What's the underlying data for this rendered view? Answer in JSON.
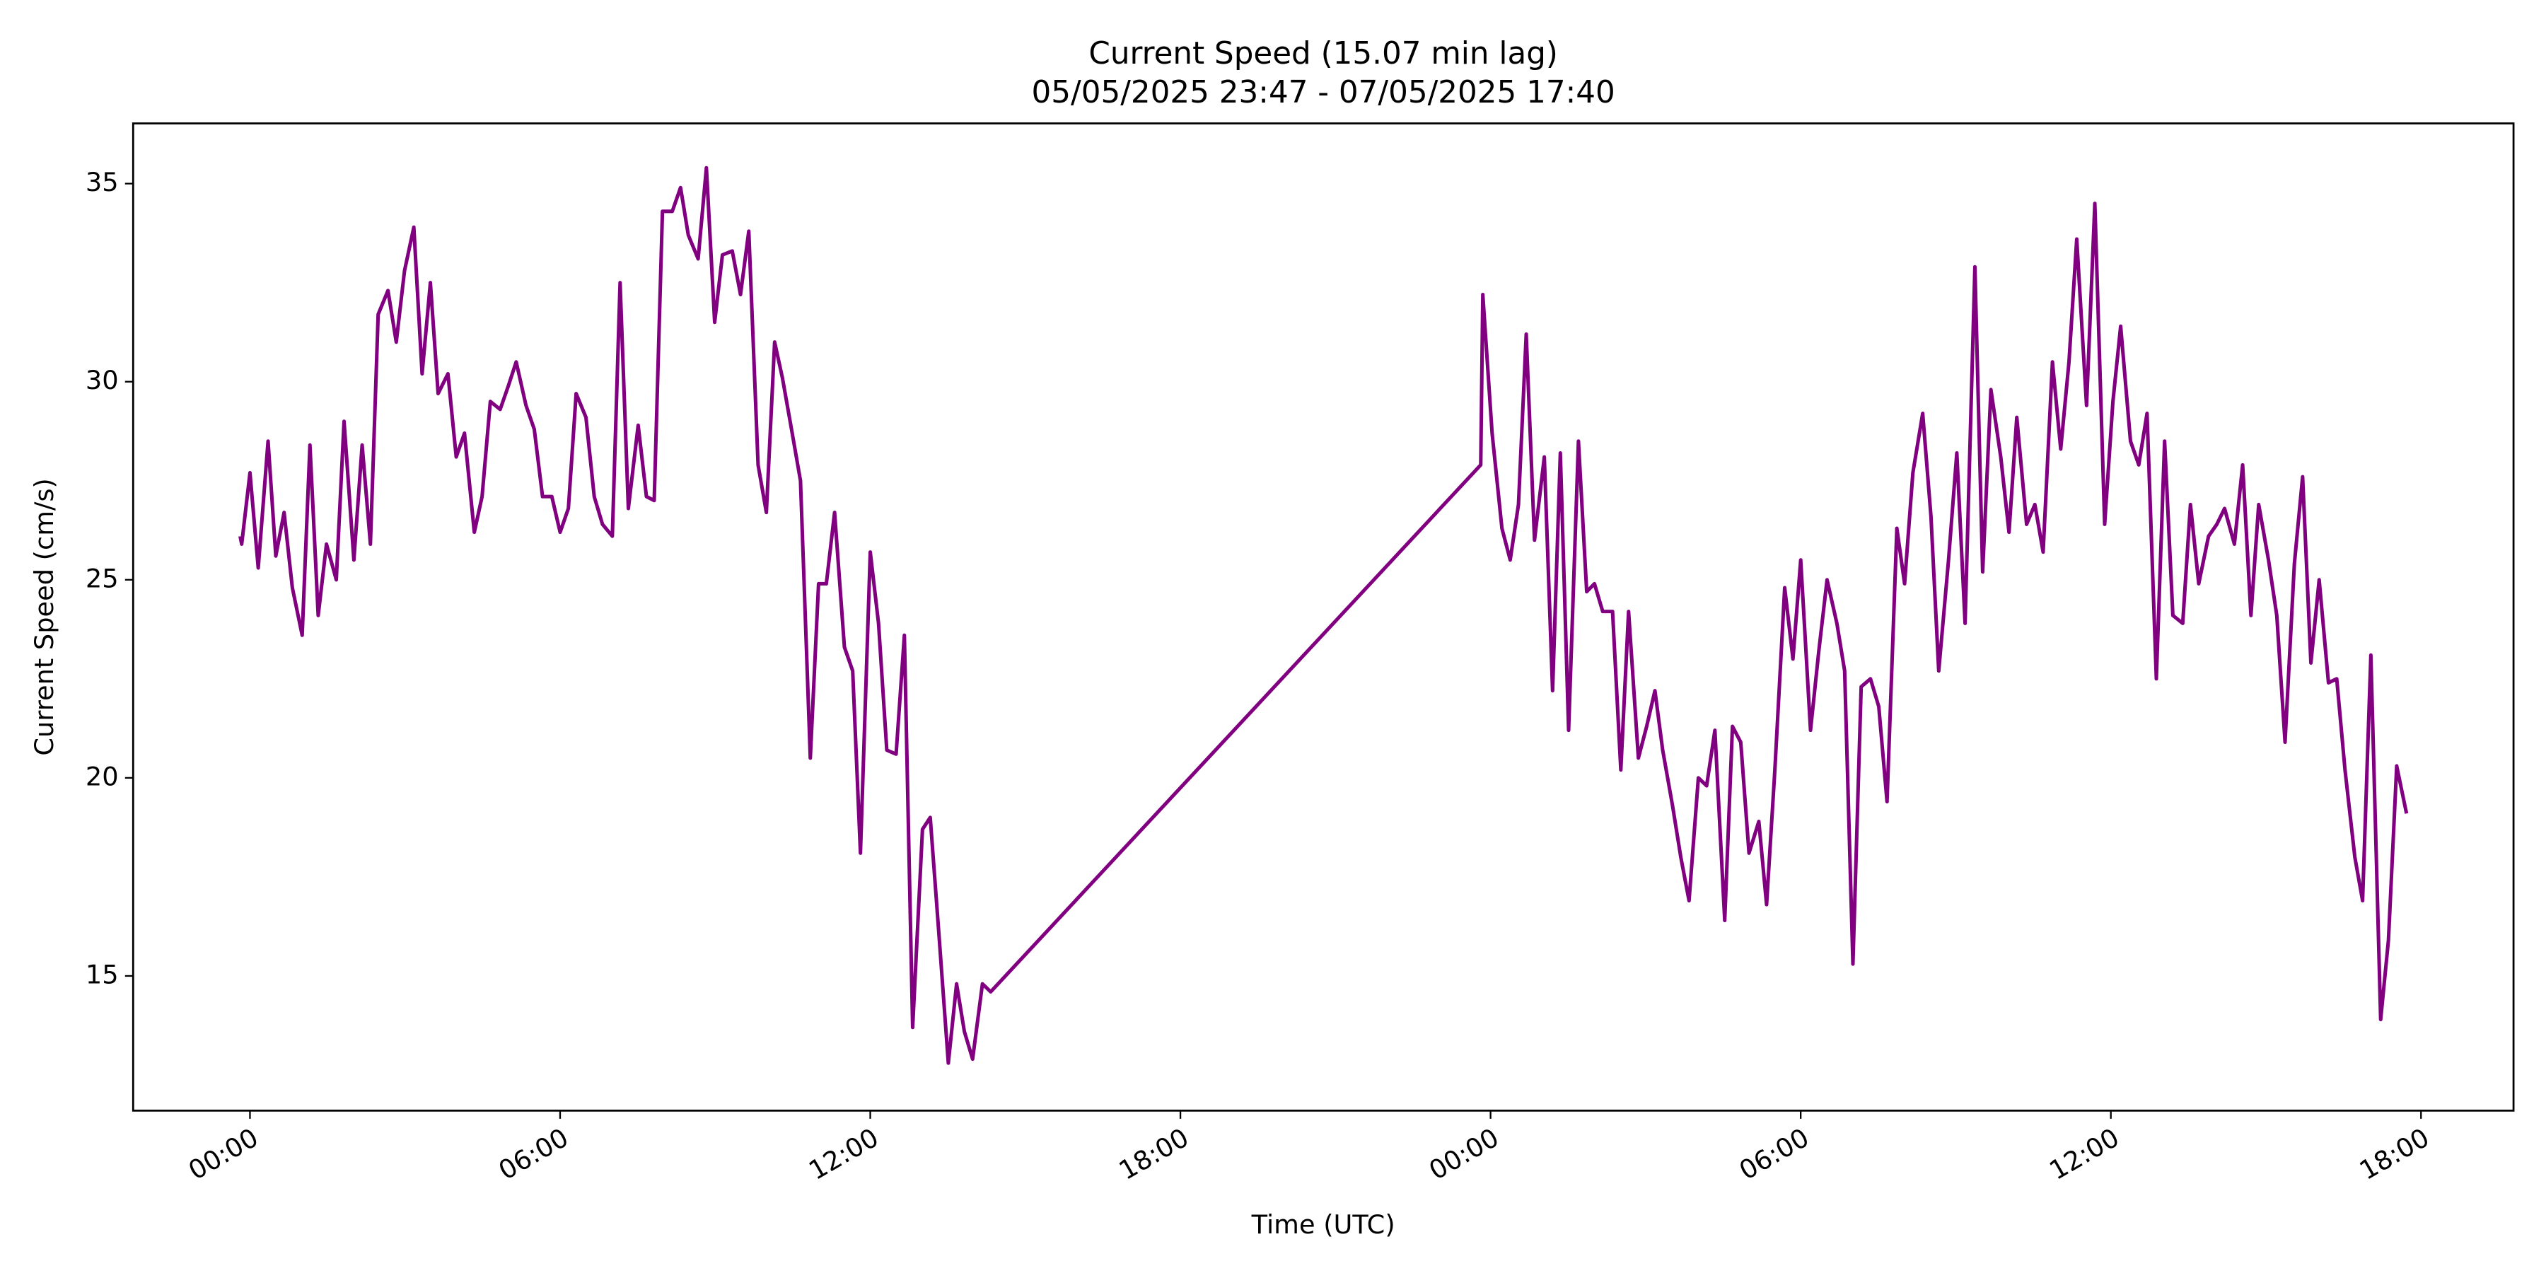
{
  "chart_data": {
    "type": "line",
    "title": "Current Speed (15.07 min lag)",
    "subtitle": "05/05/2025 23:47 - 07/05/2025 17:40",
    "xlabel": "Time (UTC)",
    "ylabel": "Current Speed (cm/s)",
    "color": "#800080",
    "x": [
      -0.19,
      -0.16,
      0,
      0.16,
      0.35,
      0.5,
      0.66,
      0.82,
      1.01,
      1.16,
      1.32,
      1.48,
      1.67,
      1.82,
      2.01,
      2.17,
      2.33,
      2.48,
      2.67,
      2.83,
      2.99,
      3.17,
      3.33,
      3.49,
      3.64,
      3.83,
      3.99,
      4.15,
      4.34,
      4.49,
      4.65,
      4.84,
      5,
      5.15,
      5.34,
      5.5,
      5.66,
      5.84,
      6,
      6.16,
      6.31,
      6.5,
      6.66,
      6.82,
      7.01,
      7.16,
      7.32,
      7.51,
      7.67,
      7.82,
      7.98,
      8.17,
      8.33,
      8.48,
      8.67,
      8.83,
      8.99,
      9.14,
      9.33,
      9.49,
      9.65,
      9.83,
      9.99,
      10.15,
      10.3,
      10.49,
      10.65,
      10.84,
      11,
      11.15,
      11.31,
      11.5,
      11.66,
      11.81,
      12,
      12.16,
      12.32,
      12.5,
      12.66,
      12.82,
      13.01,
      13.16,
      13.32,
      13.51,
      13.67,
      13.82,
      13.98,
      14.17,
      14.33,
      23.81,
      23.85,
      24.03,
      24.22,
      24.38,
      24.54,
      24.69,
      24.85,
      25.04,
      25.2,
      25.35,
      25.51,
      25.7,
      25.86,
      26.01,
      26.17,
      26.36,
      26.52,
      26.67,
      26.86,
      27.02,
      27.18,
      27.33,
      27.52,
      27.68,
      27.84,
      28.02,
      28.18,
      28.34,
      28.53,
      28.68,
      28.84,
      29,
      29.19,
      29.34,
      29.5,
      29.69,
      29.85,
      30,
      30.19,
      30.35,
      30.51,
      30.7,
      30.85,
      31.01,
      31.17,
      31.35,
      31.51,
      31.67,
      31.86,
      32.01,
      32.17,
      32.36,
      32.52,
      32.67,
      32.86,
      33.02,
      33.18,
      33.37,
      33.52,
      33.68,
      33.87,
      34.03,
      34.18,
      34.37,
      34.53,
      34.69,
      34.87,
      35.03,
      35.19,
      35.34,
      35.53,
      35.69,
      35.88,
      36.04,
      36.19,
      36.38,
      36.54,
      36.7,
      36.88,
      37.04,
      37.2,
      37.39,
      37.54,
      37.7,
      37.89,
      38.05,
      38.2,
      38.39,
      38.55,
      38.71,
      38.86,
      39.05,
      39.21,
      39.37,
      39.55,
      39.71,
      39.87,
      40.03,
      40.21,
      40.37,
      40.53,
      40.72,
      40.87,
      41.03,
      41.22,
      41.37,
      41.53,
      41.72
    ],
    "values": [
      26.1,
      25.9,
      27.7,
      25.3,
      28.5,
      25.6,
      26.7,
      24.8,
      23.6,
      28.4,
      24.1,
      25.9,
      25.0,
      29.0,
      25.5,
      28.4,
      25.9,
      31.7,
      32.3,
      31.0,
      32.8,
      33.9,
      30.2,
      32.5,
      29.7,
      30.2,
      28.1,
      28.7,
      26.2,
      27.1,
      29.5,
      29.3,
      29.9,
      30.5,
      29.4,
      28.8,
      27.1,
      27.1,
      26.2,
      26.8,
      29.7,
      29.1,
      27.1,
      26.4,
      26.1,
      32.5,
      26.8,
      28.9,
      27.1,
      27.0,
      34.3,
      34.3,
      34.9,
      33.7,
      33.1,
      35.4,
      31.5,
      33.2,
      33.3,
      32.2,
      33.8,
      27.9,
      26.7,
      31.0,
      30.1,
      28.7,
      27.5,
      20.5,
      24.9,
      24.9,
      26.7,
      23.3,
      22.7,
      18.1,
      25.7,
      23.9,
      20.7,
      20.6,
      23.6,
      13.7,
      18.7,
      19.0,
      16.2,
      12.8,
      14.8,
      13.6,
      12.9,
      14.8,
      14.6,
      27.9,
      32.2,
      28.7,
      26.3,
      25.5,
      26.9,
      31.2,
      26.0,
      28.1,
      22.2,
      28.2,
      21.2,
      28.5,
      24.7,
      24.9,
      24.2,
      24.2,
      20.2,
      24.2,
      20.5,
      21.3,
      22.2,
      20.7,
      19.3,
      18.0,
      16.9,
      20.0,
      19.8,
      21.2,
      16.4,
      21.3,
      20.9,
      18.1,
      18.9,
      16.8,
      20.2,
      24.8,
      23.0,
      25.5,
      21.2,
      23.2,
      25.0,
      23.9,
      22.7,
      15.3,
      22.3,
      22.5,
      21.8,
      19.4,
      26.3,
      24.9,
      27.7,
      29.2,
      26.6,
      22.7,
      25.5,
      28.2,
      23.9,
      32.9,
      25.2,
      29.8,
      28.1,
      26.2,
      29.1,
      26.4,
      26.9,
      25.7,
      30.5,
      28.3,
      30.5,
      33.6,
      29.4,
      34.5,
      26.4,
      29.5,
      31.4,
      28.5,
      27.9,
      29.2,
      22.5,
      28.5,
      24.1,
      23.9,
      26.9,
      24.9,
      26.1,
      26.4,
      26.8,
      25.9,
      27.9,
      24.1,
      26.9,
      25.5,
      24.1,
      20.9,
      25.4,
      27.6,
      22.9,
      25.0,
      22.4,
      22.5,
      20.2,
      18.0,
      16.9,
      23.1,
      13.9,
      15.9,
      20.3,
      19.1
    ],
    "xlim": [
      -2.26,
      43.79
    ],
    "xticks": [
      {
        "value": 0,
        "label": "00:00"
      },
      {
        "value": 6,
        "label": "06:00"
      },
      {
        "value": 12,
        "label": "12:00"
      },
      {
        "value": 18,
        "label": "18:00"
      },
      {
        "value": 24,
        "label": "00:00"
      },
      {
        "value": 30,
        "label": "06:00"
      },
      {
        "value": 36,
        "label": "12:00"
      },
      {
        "value": 42,
        "label": "18:00"
      }
    ],
    "ylim": [
      11.6,
      36.52
    ],
    "yticks": [
      15,
      20,
      25,
      30,
      35
    ],
    "grid": false
  }
}
